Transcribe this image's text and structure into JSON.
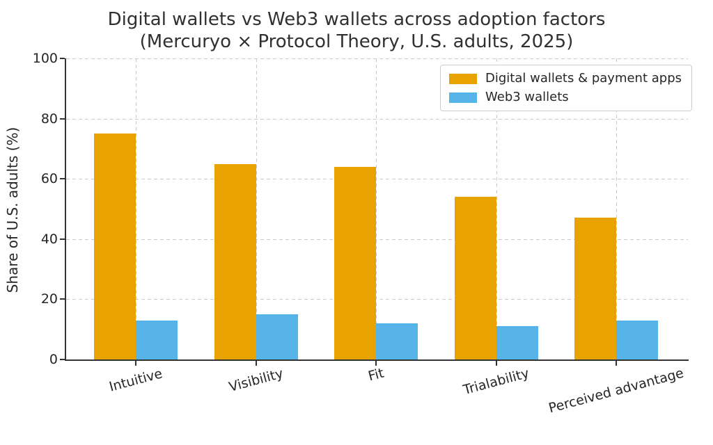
{
  "header": {
    "title_line1": "Digital wallets vs Web3 wallets across adoption factors",
    "title_line2": "(Mercuryo × Protocol Theory, U.S. adults, 2025)"
  },
  "chart_data": {
    "type": "bar",
    "title": "Digital wallets vs Web3 wallets across adoption factors",
    "subtitle": "(Mercuryo × Protocol Theory, U.S. adults, 2025)",
    "categories": [
      "Intuitive",
      "Visibility",
      "Fit",
      "Trialability",
      "Perceived advantage"
    ],
    "series": [
      {
        "name": "Digital wallets & payment apps",
        "color": "#E8A202",
        "values": [
          75,
          65,
          64,
          54,
          47
        ]
      },
      {
        "name": "Web3 wallets",
        "color": "#56B4E9",
        "values": [
          13,
          15,
          12,
          11,
          13
        ]
      }
    ],
    "xlabel": "",
    "ylabel": "Share of U.S. adults (%)",
    "ylim": [
      0,
      100
    ],
    "yticks": [
      0,
      20,
      40,
      60,
      80,
      100
    ],
    "grid": "both",
    "grid_style": "dashed",
    "legend_position": "upper right",
    "xtick_rotation_deg": 15
  }
}
